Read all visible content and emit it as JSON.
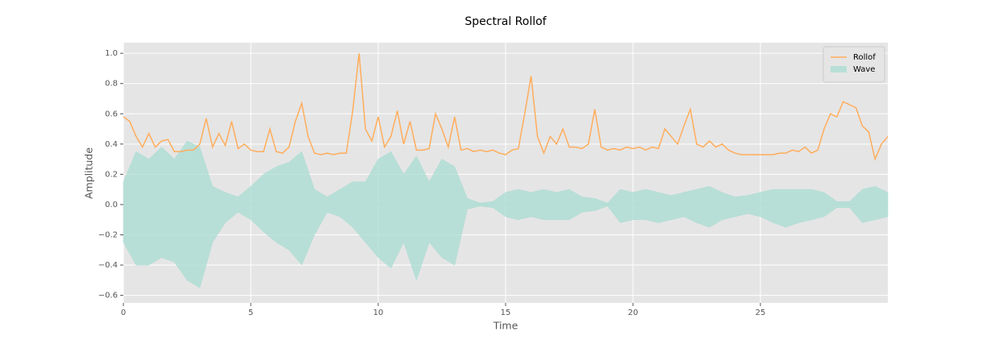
{
  "chart_data": {
    "type": "line",
    "title": "Spectral Rollof",
    "xlabel": "Time",
    "ylabel": "Amplitude",
    "xlim": [
      0,
      30
    ],
    "ylim": [
      -0.65,
      1.07
    ],
    "xticks": [
      0,
      5,
      10,
      15,
      20,
      25
    ],
    "yticks": [
      {
        "value": -0.6,
        "label": "−0.6"
      },
      {
        "value": -0.4,
        "label": "−0.4"
      },
      {
        "value": -0.2,
        "label": "−0.2"
      },
      {
        "value": 0,
        "label": "0.0"
      },
      0.2,
      0.4,
      0.6,
      0.8,
      {
        "value": 1,
        "label": "1.0"
      }
    ],
    "grid": true,
    "legend": "upper right",
    "series": [
      {
        "name": "Wave",
        "type": "area",
        "color": "#a8dcd1",
        "x": [
          0,
          0.5,
          1,
          1.5,
          2,
          2.5,
          3,
          3.5,
          4,
          4.5,
          5,
          5.5,
          6,
          6.5,
          7,
          7.5,
          8,
          8.5,
          9,
          9.5,
          10,
          10.5,
          11,
          11.5,
          12,
          12.5,
          13,
          13.5,
          14,
          14.5,
          15,
          15.5,
          16,
          16.5,
          17,
          17.5,
          18,
          18.5,
          19,
          19.5,
          20,
          20.5,
          21,
          21.5,
          22,
          22.5,
          23,
          23.5,
          24,
          24.5,
          25,
          25.5,
          26,
          26.5,
          27,
          27.5,
          28,
          28.5,
          29,
          29.5,
          30
        ],
        "values": [
          0.15,
          0.35,
          0.3,
          0.38,
          0.3,
          0.42,
          0.38,
          0.12,
          0.08,
          0.05,
          0.12,
          0.2,
          0.25,
          0.28,
          0.35,
          0.1,
          0.05,
          0.1,
          0.15,
          0.15,
          0.3,
          0.35,
          0.2,
          0.32,
          0.15,
          0.3,
          0.25,
          0.04,
          0.01,
          0.02,
          0.08,
          0.1,
          0.08,
          0.1,
          0.08,
          0.1,
          0.05,
          0.04,
          0.01,
          0.1,
          0.08,
          0.1,
          0.08,
          0.06,
          0.08,
          0.1,
          0.12,
          0.08,
          0.05,
          0.06,
          0.08,
          0.1,
          0.1,
          0.1,
          0.1,
          0.08,
          0.02,
          0.02,
          0.1,
          0.12,
          0.08
        ],
        "lower": [
          -0.25,
          -0.4,
          -0.4,
          -0.35,
          -0.38,
          -0.5,
          -0.55,
          -0.25,
          -0.12,
          -0.05,
          -0.1,
          -0.18,
          -0.25,
          -0.3,
          -0.4,
          -0.2,
          -0.05,
          -0.08,
          -0.15,
          -0.25,
          -0.35,
          -0.42,
          -0.25,
          -0.5,
          -0.25,
          -0.35,
          -0.4,
          -0.03,
          -0.01,
          -0.02,
          -0.08,
          -0.1,
          -0.08,
          -0.1,
          -0.1,
          -0.1,
          -0.05,
          -0.04,
          -0.01,
          -0.12,
          -0.1,
          -0.1,
          -0.12,
          -0.1,
          -0.08,
          -0.12,
          -0.15,
          -0.1,
          -0.08,
          -0.06,
          -0.08,
          -0.12,
          -0.15,
          -0.12,
          -0.1,
          -0.08,
          -0.02,
          -0.02,
          -0.12,
          -0.1,
          -0.08
        ]
      },
      {
        "name": "Rollof",
        "type": "line",
        "color": "#ffad5c",
        "x": [
          0,
          0.25,
          0.5,
          0.75,
          1,
          1.25,
          1.5,
          1.75,
          2,
          2.25,
          2.5,
          2.75,
          3,
          3.25,
          3.5,
          3.75,
          4,
          4.25,
          4.5,
          4.75,
          5,
          5.25,
          5.5,
          5.75,
          6,
          6.25,
          6.5,
          6.75,
          7,
          7.25,
          7.5,
          7.75,
          8,
          8.25,
          8.5,
          8.75,
          9,
          9.25,
          9.5,
          9.75,
          10,
          10.25,
          10.5,
          10.75,
          11,
          11.25,
          11.5,
          11.75,
          12,
          12.25,
          12.5,
          12.75,
          13,
          13.25,
          13.5,
          13.75,
          14,
          14.25,
          14.5,
          14.75,
          15,
          15.25,
          15.5,
          15.75,
          16,
          16.25,
          16.5,
          16.75,
          17,
          17.25,
          17.5,
          17.75,
          18,
          18.25,
          18.5,
          18.75,
          19,
          19.25,
          19.5,
          19.75,
          20,
          20.25,
          20.5,
          20.75,
          21,
          21.25,
          21.5,
          21.75,
          22,
          22.25,
          22.5,
          22.75,
          23,
          23.25,
          23.5,
          23.75,
          24,
          24.25,
          24.5,
          24.75,
          25,
          25.25,
          25.5,
          25.75,
          26,
          26.25,
          26.5,
          26.75,
          27,
          27.25,
          27.5,
          27.75,
          28,
          28.25,
          28.5,
          28.75,
          29,
          29.25,
          29.5,
          29.75,
          30
        ],
        "values": [
          0.58,
          0.55,
          0.45,
          0.38,
          0.47,
          0.38,
          0.42,
          0.43,
          0.35,
          0.35,
          0.36,
          0.36,
          0.4,
          0.57,
          0.38,
          0.47,
          0.39,
          0.55,
          0.37,
          0.4,
          0.36,
          0.35,
          0.35,
          0.5,
          0.35,
          0.34,
          0.38,
          0.55,
          0.67,
          0.45,
          0.34,
          0.33,
          0.34,
          0.33,
          0.34,
          0.34,
          0.62,
          1.0,
          0.5,
          0.42,
          0.58,
          0.38,
          0.45,
          0.62,
          0.4,
          0.55,
          0.36,
          0.36,
          0.37,
          0.6,
          0.5,
          0.38,
          0.58,
          0.36,
          0.37,
          0.35,
          0.36,
          0.35,
          0.36,
          0.34,
          0.33,
          0.36,
          0.37,
          0.6,
          0.85,
          0.45,
          0.34,
          0.45,
          0.4,
          0.5,
          0.38,
          0.38,
          0.37,
          0.4,
          0.63,
          0.38,
          0.36,
          0.37,
          0.36,
          0.38,
          0.37,
          0.38,
          0.36,
          0.38,
          0.37,
          0.5,
          0.45,
          0.4,
          0.52,
          0.63,
          0.4,
          0.38,
          0.42,
          0.38,
          0.4,
          0.36,
          0.34,
          0.33,
          0.33,
          0.33,
          0.33,
          0.33,
          0.33,
          0.34,
          0.34,
          0.36,
          0.35,
          0.38,
          0.34,
          0.36,
          0.5,
          0.6,
          0.58,
          0.68,
          0.66,
          0.64,
          0.52,
          0.48,
          0.3,
          0.4,
          0.45
        ]
      }
    ]
  }
}
